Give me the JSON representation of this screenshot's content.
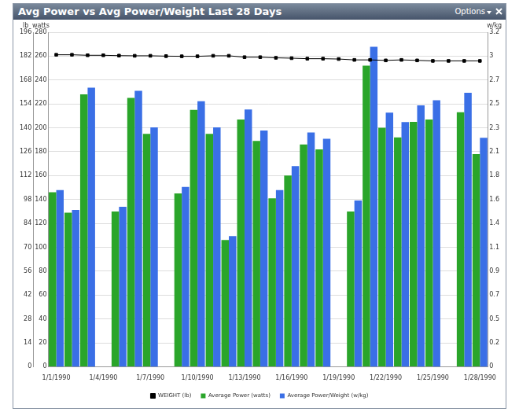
{
  "chart_data": {
    "type": "bar",
    "title": "Avg Power vs Avg Power/Weight Last 28 Days",
    "options_label": "Options",
    "categories": [
      "1/1/1990",
      null,
      null,
      "1/4/1990",
      null,
      null,
      "1/7/1990",
      null,
      null,
      "1/10/1990",
      null,
      null,
      "1/13/1990",
      null,
      null,
      "1/16/1990",
      null,
      null,
      "1/19/1990",
      null,
      null,
      "1/22/1990",
      null,
      null,
      "1/25/1990",
      null,
      null,
      "1/28/1990"
    ],
    "series": [
      {
        "name": "Average Power (watts)",
        "color": "#2aa52a",
        "values": [
          146,
          129,
          228,
          null,
          130,
          225,
          195,
          null,
          145,
          215,
          195,
          106,
          207,
          189,
          141,
          160,
          186,
          182,
          null,
          130,
          252,
          200,
          192,
          205,
          207,
          null,
          213,
          178
        ]
      },
      {
        "name": "Average Power/Weight (w/kg)",
        "color": "#3a6fe6",
        "axis": "y2",
        "values": [
          1.69,
          1.5,
          2.67,
          null,
          1.53,
          2.64,
          2.29,
          null,
          1.72,
          2.54,
          2.29,
          1.25,
          2.46,
          2.26,
          1.69,
          1.92,
          2.24,
          2.18,
          null,
          1.59,
          3.06,
          2.43,
          2.34,
          2.5,
          2.55,
          null,
          2.62,
          2.19
        ]
      },
      {
        "name": "WEIGHT (lb)",
        "type": "line",
        "color": "#000000",
        "marker": "square",
        "axis": "y3",
        "values": [
          182.8,
          182.8,
          182.5,
          182.5,
          182.3,
          182.2,
          182.2,
          182,
          181.9,
          181.9,
          182.2,
          182.2,
          181.4,
          181.4,
          181,
          180.8,
          180.5,
          180.5,
          180.3,
          179.8,
          179.8,
          179.5,
          179.8,
          179.5,
          179.2,
          179.2,
          179.2,
          179.2
        ]
      }
    ],
    "y_label": "watts",
    "y2_label": "w/kg",
    "y3_label": "lb",
    "ylim": [
      0,
      280
    ],
    "yticks": [
      0,
      20,
      40,
      60,
      80,
      100,
      120,
      140,
      160,
      180,
      200,
      220,
      240,
      260,
      280
    ],
    "y2lim": [
      0,
      3.2
    ],
    "y2ticks": [
      0,
      {
        "value": 0.2286,
        "label": "0.2"
      },
      {
        "value": 0.4571,
        "label": "0.5"
      },
      {
        "value": 0.6857,
        "label": "0.7"
      },
      {
        "value": 0.9143,
        "label": "0.9"
      },
      {
        "value": 1.1429,
        "label": "1.1"
      },
      {
        "value": 1.3714,
        "label": "1.4"
      },
      1.6,
      {
        "value": 1.8286,
        "label": "1.8"
      },
      {
        "value": 2.0571,
        "label": "2.1"
      },
      {
        "value": 2.2857,
        "label": "2.3"
      },
      {
        "value": 2.5143,
        "label": "2.5"
      },
      {
        "value": 2.7429,
        "label": "2.7"
      },
      {
        "value": 2.9714,
        "label": "3"
      },
      3.2
    ],
    "y3lim": [
      0,
      196
    ],
    "y3ticks": [
      0,
      14,
      28,
      42,
      56,
      70,
      84,
      98,
      112,
      126,
      140,
      154,
      168,
      182,
      196
    ],
    "grid": true,
    "legend": "bottom"
  }
}
